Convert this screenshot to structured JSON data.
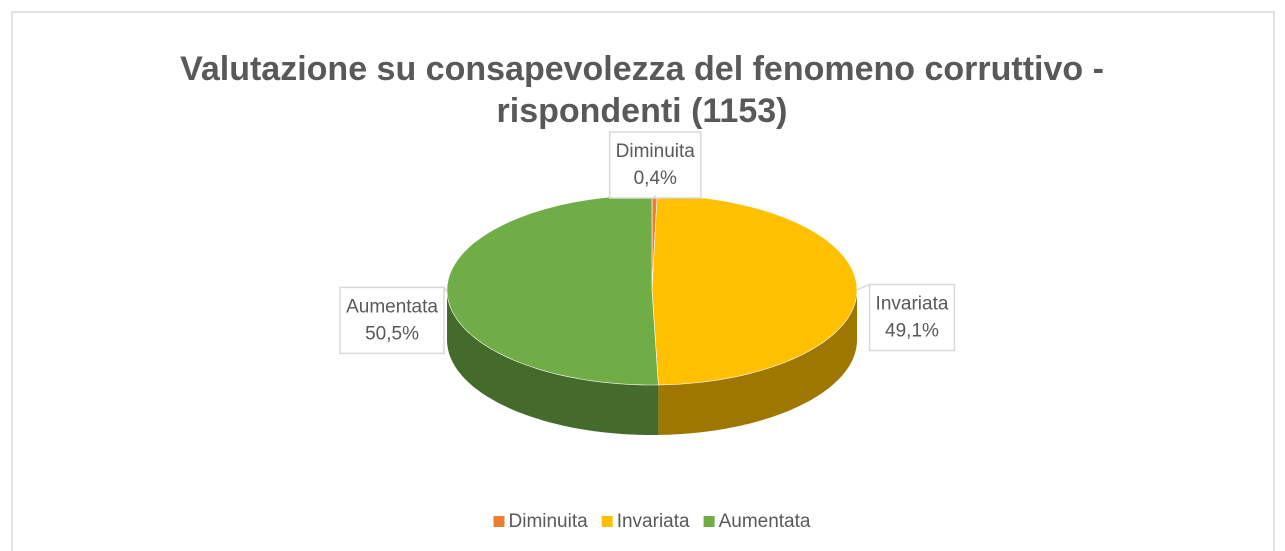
{
  "chart_data": {
    "type": "pie",
    "title": "Valutazione su consapevolezza del fenomeno corruttivo - rispondenti (1153)",
    "categories": [
      "Diminuita",
      "Invariata",
      "Aumentata"
    ],
    "values": [
      0.4,
      49.1,
      50.5
    ],
    "value_labels": [
      "0,4%",
      "49,1%",
      "50,5%"
    ],
    "colors": [
      "#ed7d31",
      "#ffc000",
      "#70ad47"
    ],
    "legend": "bottom"
  }
}
